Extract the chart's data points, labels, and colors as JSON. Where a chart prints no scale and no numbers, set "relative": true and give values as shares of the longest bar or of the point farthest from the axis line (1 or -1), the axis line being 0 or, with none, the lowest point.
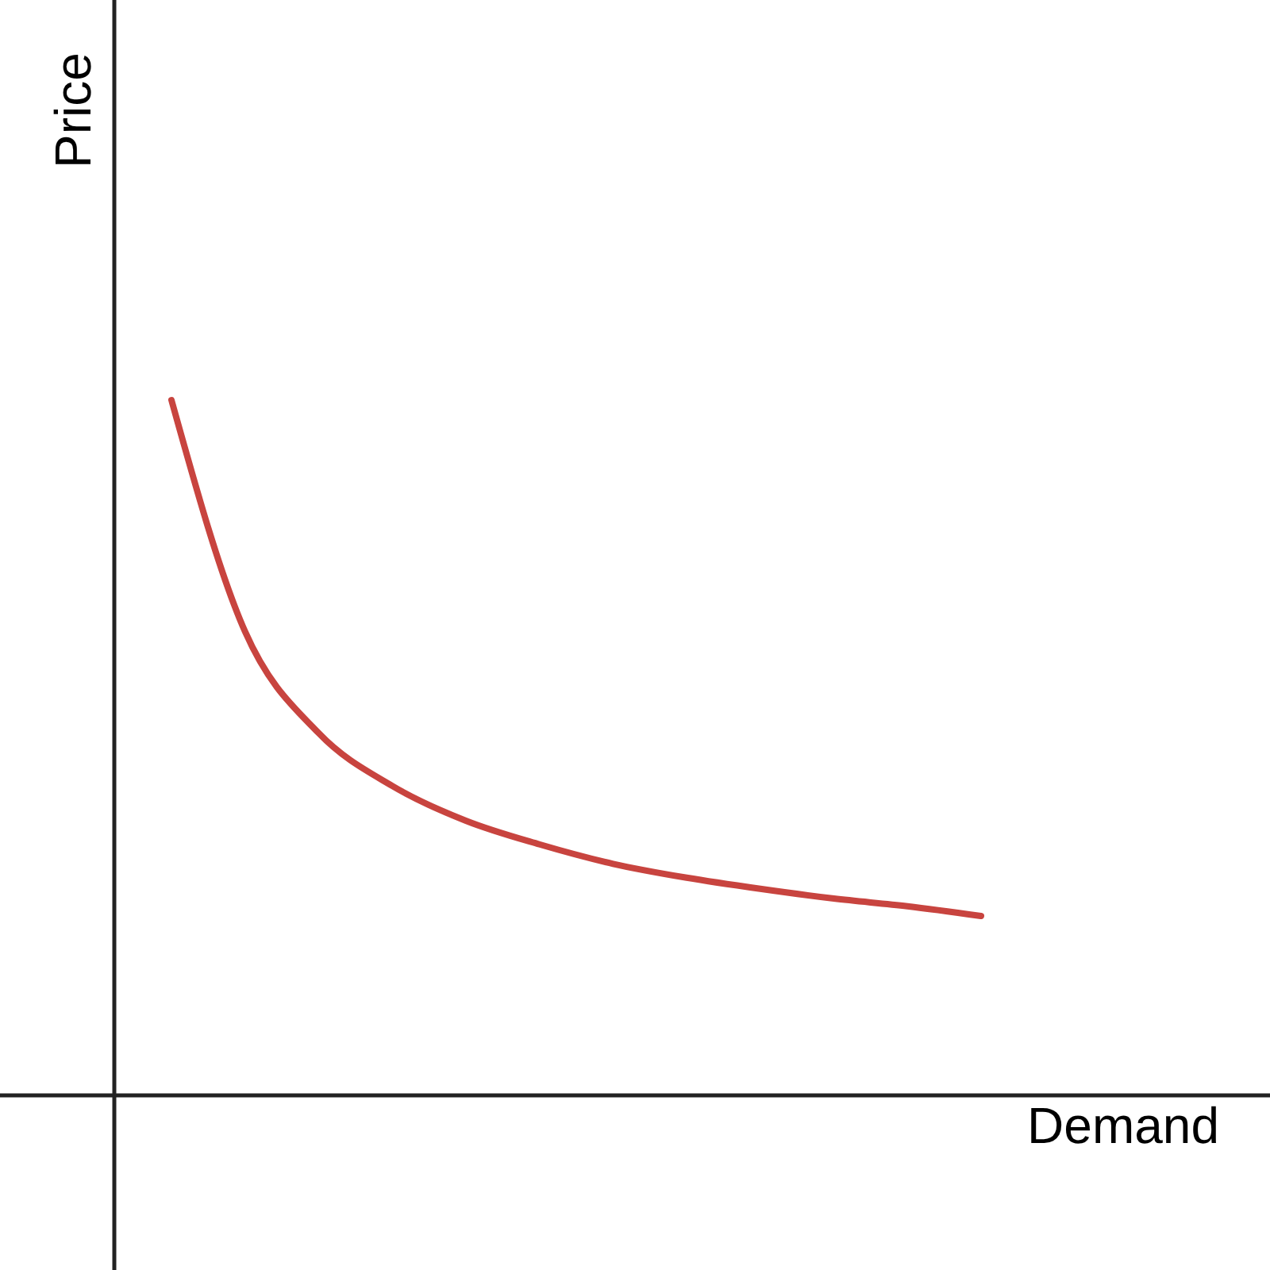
{
  "chart_data": {
    "type": "line",
    "xlabel": "Demand",
    "ylabel": "Price",
    "relative": true,
    "categories": [
      null,
      null,
      null,
      null,
      null,
      null,
      null,
      null,
      null,
      null,
      null,
      null
    ],
    "series": [
      {
        "color": "#c8443f",
        "values": [
          1,
          0.667,
          0.521,
          0.445,
          0.395,
          0.361,
          0.333,
          0.313,
          0.297,
          0.283,
          0.272,
          0.258
        ]
      }
    ]
  }
}
